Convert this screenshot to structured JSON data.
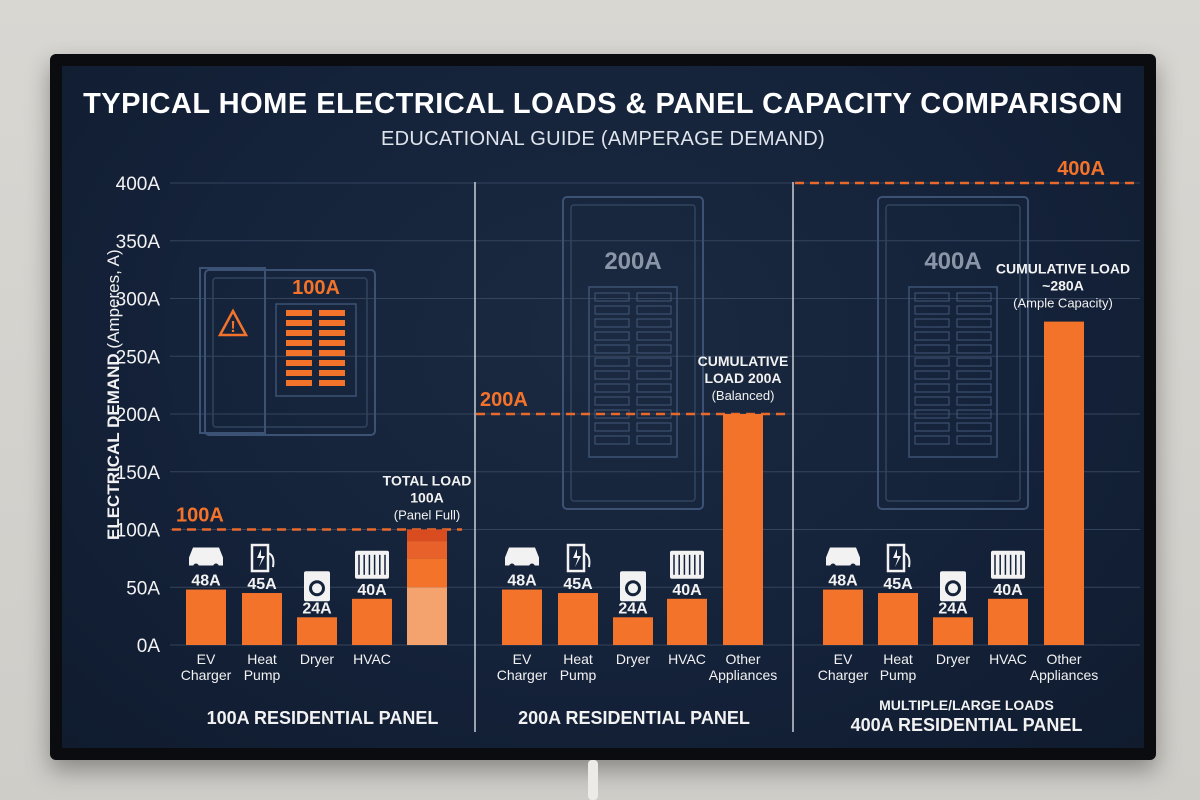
{
  "title": "TYPICAL HOME ELECTRICAL LOADS & PANEL CAPACITY COMPARISON",
  "subtitle": "EDUCATIONAL GUIDE (AMPERAGE DEMAND)",
  "ylabel_bold": "ELECTRICAL DEMAND",
  "ylabel_rest": "(Amperes, A)",
  "colors": {
    "bar": "#f4732a",
    "bar_light": "#f5a36e",
    "bar_dark": "#d94c20",
    "capacity_line": "#e8692b",
    "grid": "#3a4a63",
    "text": "#f2f2f2",
    "accent_text": "#f4732a"
  },
  "chart_data": {
    "type": "bar",
    "yunit": "A",
    "ylim": [
      0,
      400
    ],
    "yticks": [
      "0A",
      "50A",
      "100A",
      "150A",
      "200A",
      "250A",
      "300A",
      "350A",
      "400A"
    ],
    "grid": true,
    "panels": [
      {
        "name": "100A RESIDENTIAL PANEL",
        "capacity": 100,
        "capacity_label": "100A",
        "panel_icon_label": "100A",
        "categories": [
          "EV Charger",
          "Heat Pump",
          "Dryer",
          "HVAC"
        ],
        "values": [
          48,
          45,
          24,
          40
        ],
        "value_labels": [
          "48A",
          "45A",
          "24A",
          "40A"
        ],
        "total": {
          "value": 100,
          "line1": "TOTAL LOAD",
          "line2": "100A",
          "line3": "(Panel Full)"
        }
      },
      {
        "name": "200A RESIDENTIAL PANEL",
        "capacity": 200,
        "capacity_label": "200A",
        "panel_icon_label": "200A",
        "categories": [
          "EV Charger",
          "Heat Pump",
          "Dryer",
          "HVAC",
          "Other Appliances"
        ],
        "values": [
          48,
          45,
          24,
          40,
          200
        ],
        "value_labels": [
          "48A",
          "45A",
          "24A",
          "40A",
          ""
        ],
        "total": {
          "value": 200,
          "line1": "CUMULATIVE",
          "line2": "LOAD 200A",
          "line3": "(Balanced)"
        }
      },
      {
        "name": "400A RESIDENTIAL PANEL",
        "subheading": "MULTIPLE/LARGE LOADS",
        "capacity": 400,
        "capacity_label": "400A",
        "panel_icon_label": "400A",
        "categories": [
          "EV Charger",
          "Heat Pump",
          "Dryer",
          "HVAC",
          "Other Appliances"
        ],
        "values": [
          48,
          45,
          24,
          40,
          280
        ],
        "value_labels": [
          "48A",
          "45A",
          "24A",
          "40A",
          ""
        ],
        "total": {
          "value": 280,
          "line1": "CUMULATIVE LOAD",
          "line2": "~280A",
          "line3": "(Ample Capacity)"
        }
      }
    ]
  }
}
